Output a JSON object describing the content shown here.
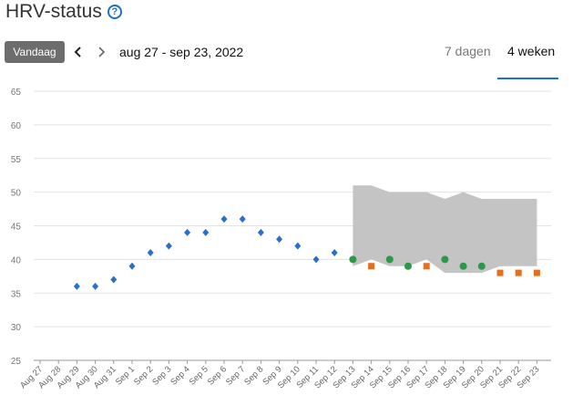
{
  "header": {
    "title": "HRV-status",
    "help_icon": "question-circle-icon"
  },
  "toolbar": {
    "today_label": "Vandaag",
    "prev_icon": "chevron-left-icon",
    "next_icon": "chevron-right-icon",
    "date_range": "aug 27 - sep 23, 2022",
    "tabs": [
      {
        "label": "7 dagen",
        "selected": false
      },
      {
        "label": "4 weken",
        "selected": true
      }
    ]
  },
  "colors": {
    "accent": "#1a73c8",
    "balanced": "#2a9a47",
    "unbalanced": "#e46f1e",
    "baseline_band": "#c4c4c4",
    "weekly_avg": "#2a6fc9"
  },
  "chart_data": {
    "type": "scatter",
    "title": "",
    "xlabel": "",
    "ylabel": "",
    "ylim": [
      25,
      65
    ],
    "y_ticks": [
      25,
      30,
      35,
      40,
      45,
      50,
      55,
      60,
      65
    ],
    "grid": true,
    "x": [
      "Aug 27",
      "Aug 28",
      "Aug 29",
      "Aug 30",
      "Aug 31",
      "Sep 1",
      "Sep 2",
      "Sep 3",
      "Sep 4",
      "Sep 5",
      "Sep 6",
      "Sep 7",
      "Sep 8",
      "Sep 9",
      "Sep 10",
      "Sep 11",
      "Sep 12",
      "Sep 13",
      "Sep 14",
      "Sep 15",
      "Sep 16",
      "Sep 17",
      "Sep 18",
      "Sep 19",
      "Sep 20",
      "Sep 21",
      "Sep 22",
      "Sep 23"
    ],
    "series": [
      {
        "marker": "diamond",
        "color": "#2a6fc9",
        "points": [
          [
            "Aug 29",
            36
          ],
          [
            "Aug 30",
            36
          ],
          [
            "Aug 31",
            37
          ],
          [
            "Sep 1",
            39
          ],
          [
            "Sep 2",
            41
          ],
          [
            "Sep 3",
            42
          ],
          [
            "Sep 4",
            44
          ],
          [
            "Sep 5",
            44
          ],
          [
            "Sep 6",
            46
          ],
          [
            "Sep 7",
            46
          ],
          [
            "Sep 8",
            44
          ],
          [
            "Sep 9",
            43
          ],
          [
            "Sep 10",
            42
          ],
          [
            "Sep 11",
            40
          ],
          [
            "Sep 12",
            41
          ]
        ]
      },
      {
        "marker": "circle",
        "color": "#2a9a47",
        "points": [
          [
            "Sep 13",
            40
          ],
          [
            "Sep 15",
            40
          ],
          [
            "Sep 16",
            39
          ],
          [
            "Sep 18",
            40
          ],
          [
            "Sep 19",
            39
          ],
          [
            "Sep 20",
            39
          ]
        ]
      },
      {
        "marker": "square",
        "color": "#e46f1e",
        "points": [
          [
            "Sep 14",
            39
          ],
          [
            "Sep 17",
            39
          ],
          [
            "Sep 21",
            38
          ],
          [
            "Sep 22",
            38
          ],
          [
            "Sep 23",
            38
          ]
        ]
      }
    ],
    "band": {
      "x": [
        "Sep 13",
        "Sep 14",
        "Sep 15",
        "Sep 16",
        "Sep 17",
        "Sep 18",
        "Sep 19",
        "Sep 20",
        "Sep 21",
        "Sep 22",
        "Sep 23"
      ],
      "upper": [
        51,
        51,
        50,
        50,
        50,
        49,
        50,
        49,
        49,
        49,
        49
      ],
      "lower": [
        39,
        40,
        39,
        39,
        40,
        38,
        38,
        38,
        39,
        39,
        39
      ]
    }
  }
}
